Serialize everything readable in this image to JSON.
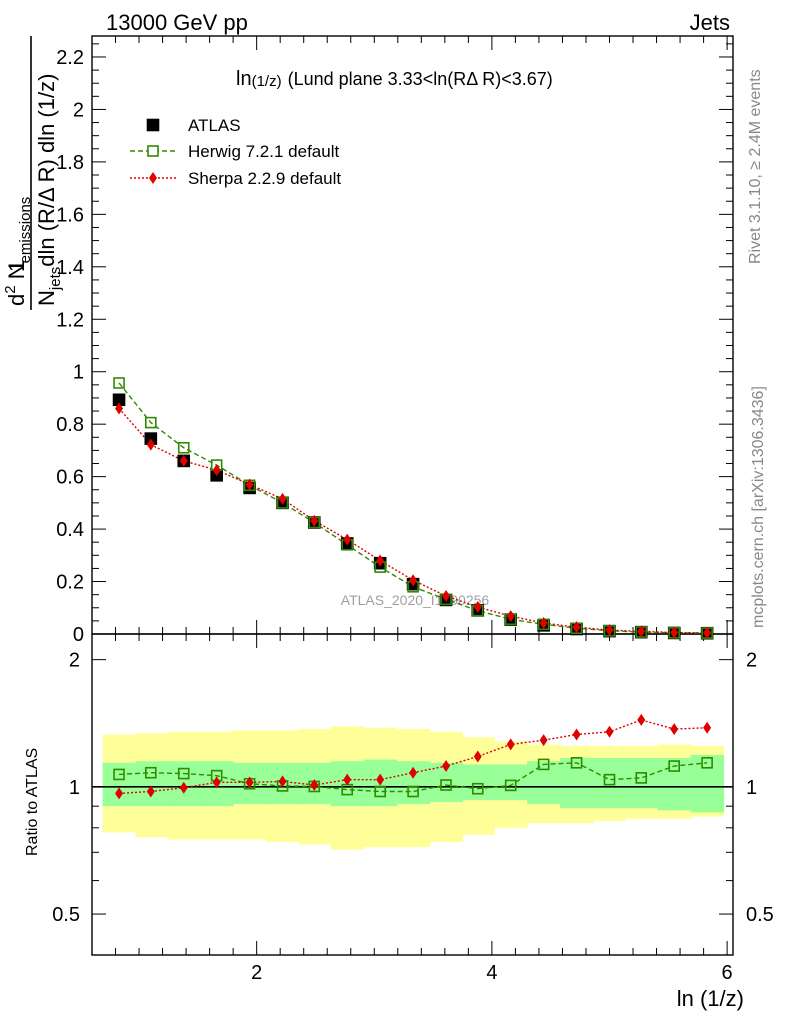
{
  "header": {
    "left": "13000 GeV pp",
    "right": "Jets"
  },
  "side": {
    "rivet": "Rivet 3.1.10, ≥ 2.4M events",
    "mcplots": "mcplots.cern.ch [arXiv:1306.3436]"
  },
  "watermark": "ATLAS_2020_I1790256",
  "chart_data": {
    "type": "scatter",
    "title": "ln(1/z) (Lund plane 3.33<ln(RΔ R)<3.67)",
    "title_parts": {
      "main": "ln",
      "sub": "(1/z)",
      "rest": "(Lund plane 3.33<ln(RΔ R)<3.67)"
    },
    "xlabel": "ln (1/z)",
    "ylabel_parts": {
      "num": "1",
      "den": "N",
      "den_sub": "jets",
      "den_rest": "dln (R/Δ R) dln (1/z)",
      "top": "d",
      "top_sup": "2",
      "top_rest": " N",
      "top_sub": "emissions"
    },
    "ratio_ylabel": "Ratio to ATLAS",
    "xlim": [
      0.6,
      6.05
    ],
    "ylim": [
      0,
      2.28
    ],
    "ratio_ylim": [
      0.4,
      2.3
    ],
    "ratio_log": true,
    "x_ticks": [
      "2",
      "4",
      "6"
    ],
    "y_ticks": [
      "0",
      "0.2",
      "0.4",
      "0.6",
      "0.8",
      "1",
      "1.2",
      "1.4",
      "1.6",
      "1.8",
      "2",
      "2.2"
    ],
    "ratio_ticks": [
      "0.5",
      "1",
      "2"
    ],
    "x": [
      0.83,
      1.1,
      1.38,
      1.66,
      1.94,
      2.22,
      2.49,
      2.77,
      3.05,
      3.33,
      3.61,
      3.88,
      4.16,
      4.44,
      4.72,
      5.0,
      5.27,
      5.55,
      5.83
    ],
    "bin_edges": [
      0.69,
      0.97,
      1.25,
      1.52,
      1.8,
      2.08,
      2.36,
      2.63,
      2.91,
      3.19,
      3.47,
      3.75,
      4.02,
      4.3,
      4.58,
      4.86,
      5.13,
      5.41,
      5.69,
      5.97
    ],
    "series": [
      {
        "name": "ATLAS",
        "color": "#000000",
        "marker": "filled-square",
        "values": [
          0.893,
          0.745,
          0.66,
          0.605,
          0.557,
          0.5,
          0.425,
          0.345,
          0.27,
          0.19,
          0.13,
          0.09,
          0.055,
          0.033,
          0.019,
          0.011,
          0.007,
          0.004,
          0.003
        ]
      },
      {
        "name": "Herwig 7.2.1 default",
        "color": "#2f8a00",
        "marker": "open-square",
        "line": "dashed",
        "values": [
          0.957,
          0.806,
          0.71,
          0.644,
          0.567,
          0.5,
          0.425,
          0.34,
          0.255,
          0.18,
          0.132,
          0.089,
          0.056,
          0.037,
          0.022,
          0.012,
          0.0074,
          0.0044,
          0.0034
        ],
        "ratio": [
          1.07,
          1.08,
          1.075,
          1.063,
          1.017,
          1.005,
          1.002,
          0.985,
          0.975,
          0.975,
          1.01,
          0.99,
          1.008,
          1.13,
          1.14,
          1.04,
          1.05,
          1.12,
          1.14
        ]
      },
      {
        "name": "Sherpa 2.2.9 default",
        "color": "#e00000",
        "marker": "filled-diamond",
        "line": "dotted",
        "values": [
          0.86,
          0.722,
          0.66,
          0.625,
          0.57,
          0.515,
          0.432,
          0.36,
          0.28,
          0.205,
          0.145,
          0.103,
          0.068,
          0.042,
          0.026,
          0.015,
          0.01,
          0.0055,
          0.0042
        ],
        "ratio": [
          0.965,
          0.975,
          0.995,
          1.025,
          1.025,
          1.03,
          1.01,
          1.04,
          1.04,
          1.08,
          1.12,
          1.18,
          1.26,
          1.29,
          1.33,
          1.35,
          1.44,
          1.37,
          1.38
        ]
      }
    ],
    "ratio_band_inner": [
      [
        0.9,
        1.14
      ],
      [
        0.9,
        1.15
      ],
      [
        0.9,
        1.15
      ],
      [
        0.9,
        1.15
      ],
      [
        0.91,
        1.14
      ],
      [
        0.91,
        1.14
      ],
      [
        0.91,
        1.14
      ],
      [
        0.9,
        1.15
      ],
      [
        0.9,
        1.16
      ],
      [
        0.91,
        1.15
      ],
      [
        0.92,
        1.14
      ],
      [
        0.93,
        1.13
      ],
      [
        0.93,
        1.13
      ],
      [
        0.91,
        1.15
      ],
      [
        0.89,
        1.17
      ],
      [
        0.89,
        1.17
      ],
      [
        0.89,
        1.17
      ],
      [
        0.88,
        1.17
      ],
      [
        0.87,
        1.19
      ]
    ],
    "ratio_band_outer": [
      [
        0.78,
        1.33
      ],
      [
        0.76,
        1.34
      ],
      [
        0.75,
        1.35
      ],
      [
        0.75,
        1.35
      ],
      [
        0.75,
        1.36
      ],
      [
        0.74,
        1.36
      ],
      [
        0.73,
        1.37
      ],
      [
        0.71,
        1.39
      ],
      [
        0.72,
        1.38
      ],
      [
        0.72,
        1.37
      ],
      [
        0.74,
        1.35
      ],
      [
        0.77,
        1.31
      ],
      [
        0.8,
        1.28
      ],
      [
        0.82,
        1.26
      ],
      [
        0.82,
        1.25
      ],
      [
        0.83,
        1.25
      ],
      [
        0.84,
        1.25
      ],
      [
        0.84,
        1.26
      ],
      [
        0.85,
        1.25
      ]
    ],
    "legend_placement": "top-left"
  }
}
